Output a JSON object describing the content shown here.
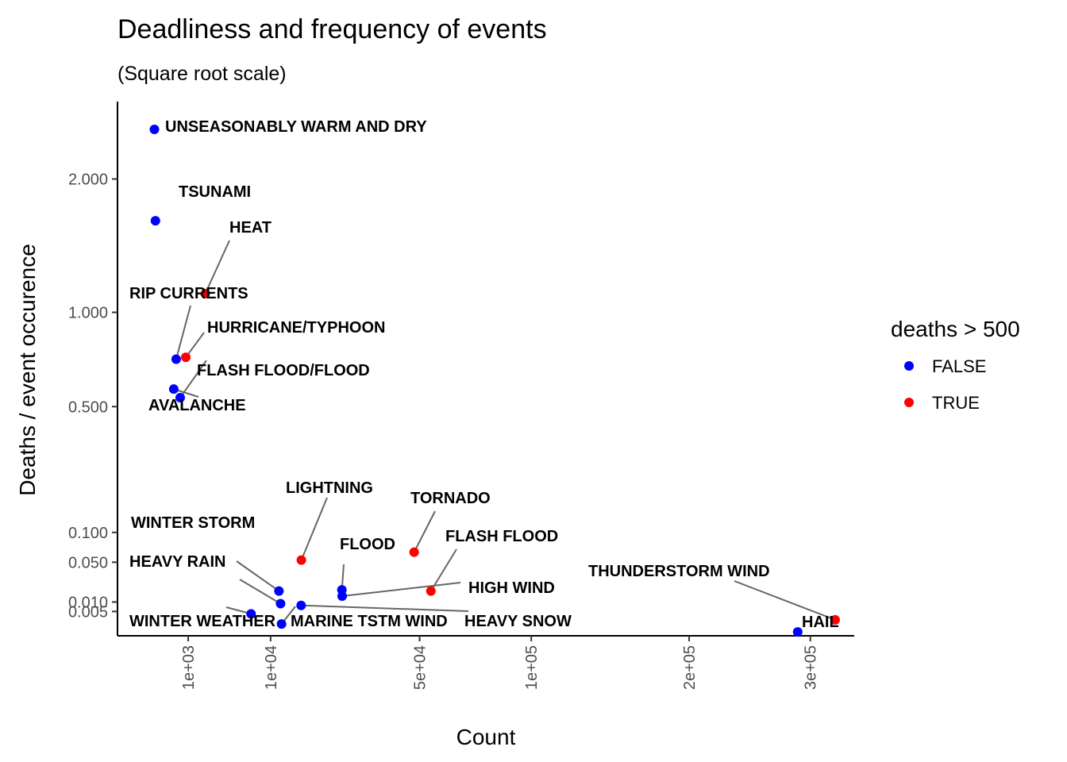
{
  "chart_data": {
    "type": "scatter",
    "title": "Deadliness and frequency of events",
    "subtitle": "(Square root scale)",
    "xlabel": "Count",
    "ylabel": "Deaths / event occurence",
    "x_scale": "sqrt",
    "y_scale": "sqrt",
    "xlim": [
      0,
      330000
    ],
    "ylim": [
      0,
      2.6
    ],
    "x_ticks": [
      {
        "value": 1000,
        "label": "1e+03"
      },
      {
        "value": 10000,
        "label": "1e+04"
      },
      {
        "value": 50000,
        "label": "5e+04"
      },
      {
        "value": 100000,
        "label": "1e+05"
      },
      {
        "value": 200000,
        "label": "2e+05"
      },
      {
        "value": 300000,
        "label": "3e+05"
      }
    ],
    "y_ticks": [
      {
        "value": 0.005,
        "label": "0.005"
      },
      {
        "value": 0.01,
        "label": "0.010"
      },
      {
        "value": 0.05,
        "label": "0.050"
      },
      {
        "value": 0.1,
        "label": "0.100"
      },
      {
        "value": 0.5,
        "label": "0.500"
      },
      {
        "value": 1.0,
        "label": "1.000"
      },
      {
        "value": 2.0,
        "label": "2.000"
      }
    ],
    "legend": {
      "title": "deaths > 500",
      "position": "right",
      "entries": [
        {
          "label": "FALSE",
          "color": "#0000ff"
        },
        {
          "label": "TRUE",
          "color": "#ff0000"
        }
      ]
    },
    "grid": false,
    "points": [
      {
        "name": "UNSEASONABLY WARM AND DRY",
        "x": 13,
        "y": 2.46,
        "deaths_gt_500": false
      },
      {
        "name": "TSUNAMI",
        "x": 20,
        "y": 1.65,
        "deaths_gt_500": false
      },
      {
        "name": "HEAT",
        "x": 2100,
        "y": 1.12,
        "deaths_gt_500": true
      },
      {
        "name": "RIP CURRENTS",
        "x": 470,
        "y": 0.73,
        "deaths_gt_500": false
      },
      {
        "name": "HURRICANE/TYPHOON",
        "x": 880,
        "y": 0.74,
        "deaths_gt_500": true
      },
      {
        "name": "AVALANCHE",
        "x": 386,
        "y": 0.58,
        "deaths_gt_500": false
      },
      {
        "name": "FLASH FLOOD/FLOOD",
        "x": 625,
        "y": 0.54,
        "deaths_gt_500": false
      },
      {
        "name": "LIGHTNING",
        "x": 15754,
        "y": 0.053,
        "deaths_gt_500": true
      },
      {
        "name": "TORNADO",
        "x": 48000,
        "y": 0.065,
        "deaths_gt_500": true
      },
      {
        "name": "FLASH FLOOD",
        "x": 54277,
        "y": 0.018,
        "deaths_gt_500": true
      },
      {
        "name": "FLOOD",
        "x": 25326,
        "y": 0.019,
        "deaths_gt_500": false
      },
      {
        "name": "HIGH WIND",
        "x": 25400,
        "y": 0.014,
        "deaths_gt_500": false
      },
      {
        "name": "WINTER STORM",
        "x": 11433,
        "y": 0.018,
        "deaths_gt_500": false
      },
      {
        "name": "HEAVY RAIN",
        "x": 11723,
        "y": 0.009,
        "deaths_gt_500": false
      },
      {
        "name": "HEAVY SNOW",
        "x": 15708,
        "y": 0.008,
        "deaths_gt_500": false
      },
      {
        "name": "WINTER WEATHER",
        "x": 7026,
        "y": 0.004,
        "deaths_gt_500": false
      },
      {
        "name": "MARINE TSTM WIND",
        "x": 11900,
        "y": 0.001,
        "deaths_gt_500": false
      },
      {
        "name": "THUNDERSTORM WIND",
        "x": 323000,
        "y": 0.002,
        "deaths_gt_500": true
      },
      {
        "name": "HAIL",
        "x": 288661,
        "y": 5e-05,
        "deaths_gt_500": false
      }
    ]
  }
}
